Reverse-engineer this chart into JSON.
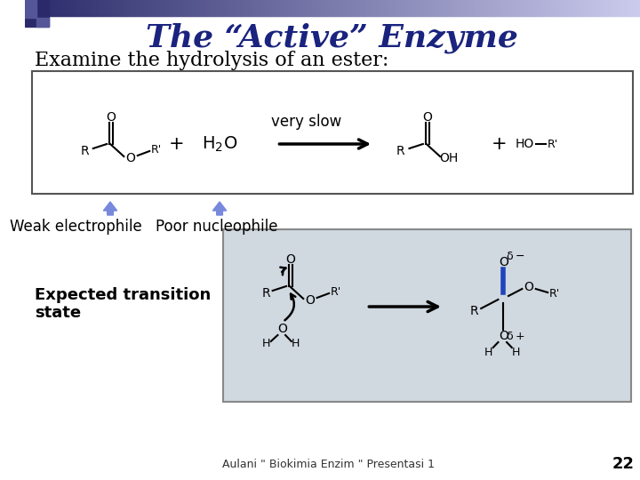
{
  "title": "The “Active” Enzyme",
  "subtitle": "Examine the hydrolysis of an ester:",
  "title_color": "#1a237e",
  "subtitle_color": "#000000",
  "background_color": "#ffffff",
  "footer_text": "Aulani \" Biokimia Enzim \" Presentasi 1",
  "footer_page": "22",
  "weak_label": "Weak electrophile",
  "poor_label": "Poor nucleophile",
  "expected_label": "Expected transition\nstate",
  "very_slow_text": "very slow",
  "upper_box_bg": "#ffffff",
  "lower_box_bg": "#d0d8e0",
  "title_fontsize": 26,
  "subtitle_fontsize": 16,
  "label_fontsize": 12,
  "blue_arrow_color": "#7788dd",
  "dark_blue_color": "#2a2a6a"
}
